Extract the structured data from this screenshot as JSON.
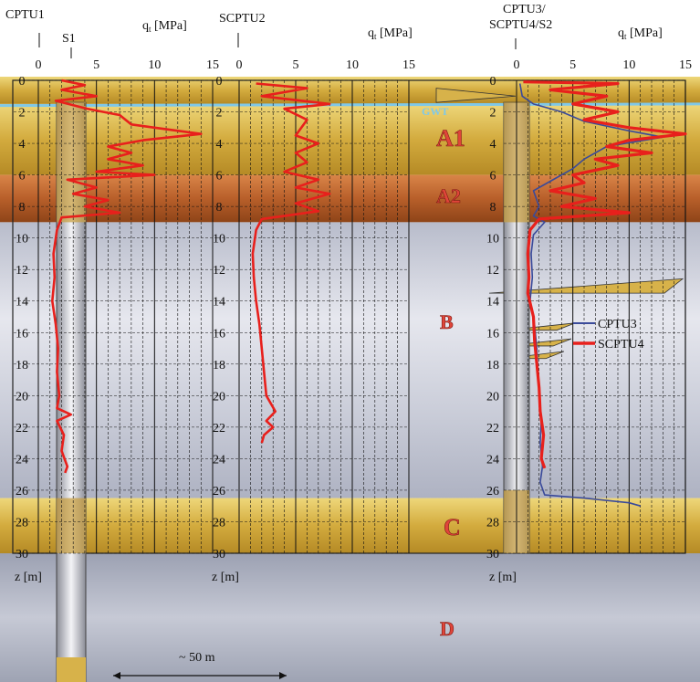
{
  "labels": {
    "cptu1": "CPTU1",
    "s1": "S1",
    "scptu2": "SCPTU2",
    "cptu3_line1": "CPTU3/",
    "cptu3_line2": "SCPTU4/S2",
    "qt_main": "q",
    "qt_sub": "t",
    "qt_unit": " [MPa]",
    "z_label": "z [m]",
    "gwt": "GWT",
    "distance": "~ 50 m"
  },
  "soil_layers": [
    {
      "name": "A1",
      "top": 1.5,
      "bottom": 6
    },
    {
      "name": "A2",
      "top": 6,
      "bottom": 9
    },
    {
      "name": "B",
      "top": 9,
      "bottom": 26.5
    },
    {
      "name": "C",
      "top": 26.5,
      "bottom": 30
    },
    {
      "name": "D",
      "top": 30,
      "bottom": 38
    }
  ],
  "colors": {
    "sand": "#d7b24a",
    "clay_a2": "#c06a32",
    "clay_b": "#c9ccd8",
    "clay_d": "#a9adbd",
    "cptu_red": "#e8201c",
    "cptu_blue": "#3a4a9a",
    "gwt": "#7fc8e8"
  },
  "chart_data": [
    {
      "type": "line",
      "name": "CPTU1 / S1",
      "xlabel": "qt [MPa]",
      "ylabel": "z [m]",
      "xlim": [
        0,
        15
      ],
      "ylim": [
        30,
        0
      ],
      "x_ticks": [
        0,
        5,
        10,
        15
      ],
      "y_ticks": [
        0,
        2,
        4,
        6,
        8,
        10,
        12,
        14,
        16,
        18,
        20,
        22,
        24,
        26,
        28,
        30
      ],
      "series": [
        {
          "values": [
            [
              2,
              0
            ],
            [
              4,
              0.3
            ],
            [
              2,
              0.6
            ],
            [
              5,
              1.0
            ],
            [
              1.5,
              1.3
            ],
            [
              4.2,
              1.8
            ],
            [
              7,
              2.2
            ],
            [
              8,
              2.8
            ],
            [
              10,
              3
            ],
            [
              14,
              3.4
            ],
            [
              9,
              3.8
            ],
            [
              6,
              4.2
            ],
            [
              8,
              4.6
            ],
            [
              6,
              5.0
            ],
            [
              9,
              5.4
            ],
            [
              5,
              5.8
            ],
            [
              10,
              6.0
            ],
            [
              2.5,
              6.3
            ],
            [
              5,
              6.8
            ],
            [
              3,
              7.2
            ],
            [
              6,
              7.6
            ],
            [
              4,
              8.0
            ],
            [
              7,
              8.4
            ],
            [
              2,
              8.7
            ],
            [
              1.6,
              9.5
            ],
            [
              1.3,
              11
            ],
            [
              1.4,
              12.5
            ],
            [
              1.2,
              14
            ],
            [
              1.5,
              15.5
            ],
            [
              1.7,
              17
            ],
            [
              1.6,
              18.5
            ],
            [
              1.8,
              20
            ],
            [
              1.6,
              20.8
            ],
            [
              2.8,
              21.2
            ],
            [
              1.6,
              21.6
            ],
            [
              2.2,
              22.5
            ],
            [
              2.0,
              23.5
            ],
            [
              2.5,
              24.5
            ],
            [
              2.3,
              24.9
            ]
          ]
        }
      ]
    },
    {
      "type": "line",
      "name": "SCPTU2",
      "xlabel": "qt [MPa]",
      "ylabel": "z [m]",
      "xlim": [
        0,
        15
      ],
      "ylim": [
        30,
        0
      ],
      "x_ticks": [
        0,
        5,
        10,
        15
      ],
      "y_ticks": [
        0,
        2,
        4,
        6,
        8,
        10,
        12,
        14,
        16,
        18,
        20,
        22,
        24,
        26,
        28,
        30
      ],
      "series": [
        {
          "values": [
            [
              1.5,
              0.2
            ],
            [
              6,
              0.5
            ],
            [
              2,
              1.0
            ],
            [
              8,
              1.5
            ],
            [
              4,
              1.8
            ],
            [
              6,
              2.5
            ],
            [
              5,
              3.5
            ],
            [
              7,
              4.0
            ],
            [
              5,
              4.6
            ],
            [
              6,
              5.2
            ],
            [
              4,
              5.8
            ],
            [
              7,
              6.3
            ],
            [
              5,
              6.8
            ],
            [
              8,
              7.2
            ],
            [
              5,
              7.8
            ],
            [
              7,
              8.3
            ],
            [
              2,
              8.8
            ],
            [
              1.5,
              9.5
            ],
            [
              1.2,
              11
            ],
            [
              1.3,
              12.5
            ],
            [
              1.5,
              14
            ],
            [
              1.8,
              15.5
            ],
            [
              2.0,
              17
            ],
            [
              2.2,
              18.5
            ],
            [
              2.4,
              20
            ],
            [
              3.2,
              21
            ],
            [
              2.4,
              21.6
            ],
            [
              3.0,
              22
            ],
            [
              2.2,
              22.5
            ],
            [
              2.0,
              23
            ]
          ]
        }
      ]
    },
    {
      "type": "line",
      "name": "CPTU3 / SCPTU4 / S2",
      "xlabel": "qt [MPa]",
      "ylabel": "z [m]",
      "xlim": [
        0,
        15
      ],
      "ylim": [
        30,
        0
      ],
      "x_ticks": [
        0,
        5,
        10,
        15
      ],
      "y_ticks": [
        0,
        2,
        4,
        6,
        8,
        10,
        12,
        14,
        16,
        18,
        20,
        22,
        24,
        26,
        28,
        30
      ],
      "legend": "right",
      "series": [
        {
          "name": "CPTU3",
          "values": [
            [
              0.3,
              0.2
            ],
            [
              0.5,
              1.0
            ],
            [
              1.5,
              1.5
            ],
            [
              4,
              2.0
            ],
            [
              6,
              2.6
            ],
            [
              10,
              3.2
            ],
            [
              13,
              3.6
            ],
            [
              8,
              4.2
            ],
            [
              6,
              5.0
            ],
            [
              5,
              5.6
            ],
            [
              3,
              6.4
            ],
            [
              1.5,
              7.0
            ],
            [
              2,
              8.0
            ],
            [
              1.5,
              8.6
            ],
            [
              2.5,
              9.0
            ],
            [
              1.5,
              9.8
            ],
            [
              1.3,
              11
            ],
            [
              1.4,
              12.5
            ],
            [
              1.2,
              14
            ],
            [
              1.6,
              15.5
            ],
            [
              1.8,
              17
            ],
            [
              1.9,
              18.5
            ],
            [
              2.0,
              20
            ],
            [
              2.2,
              21.5
            ],
            [
              2.1,
              23
            ],
            [
              2.3,
              24.5
            ],
            [
              2.1,
              25.5
            ],
            [
              2.5,
              26.3
            ],
            [
              6,
              26.5
            ],
            [
              10,
              26.8
            ],
            [
              11,
              27
            ]
          ]
        },
        {
          "name": "SCPTU4",
          "values": [
            [
              0.6,
              0.1
            ],
            [
              9,
              0.2
            ],
            [
              3,
              0.6
            ],
            [
              8,
              1.0
            ],
            [
              5,
              1.5
            ],
            [
              9,
              2.0
            ],
            [
              6,
              2.5
            ],
            [
              10,
              3
            ],
            [
              15,
              3.4
            ],
            [
              10,
              3.8
            ],
            [
              8,
              4.2
            ],
            [
              12,
              4.6
            ],
            [
              7,
              5.0
            ],
            [
              9,
              5.4
            ],
            [
              5,
              6.0
            ],
            [
              6,
              6.5
            ],
            [
              3,
              7.0
            ],
            [
              7,
              7.5
            ],
            [
              4,
              8.0
            ],
            [
              10,
              8.4
            ],
            [
              2,
              8.8
            ],
            [
              1.2,
              9.5
            ],
            [
              1.0,
              11
            ],
            [
              1.1,
              12.5
            ],
            [
              1.0,
              13.5
            ],
            [
              1.5,
              15
            ],
            [
              1.6,
              16.5
            ],
            [
              1.8,
              18
            ],
            [
              2.0,
              19.5
            ],
            [
              2.1,
              21
            ],
            [
              2.4,
              22.5
            ],
            [
              2.2,
              24
            ],
            [
              2.5,
              24.6
            ]
          ]
        }
      ]
    }
  ]
}
